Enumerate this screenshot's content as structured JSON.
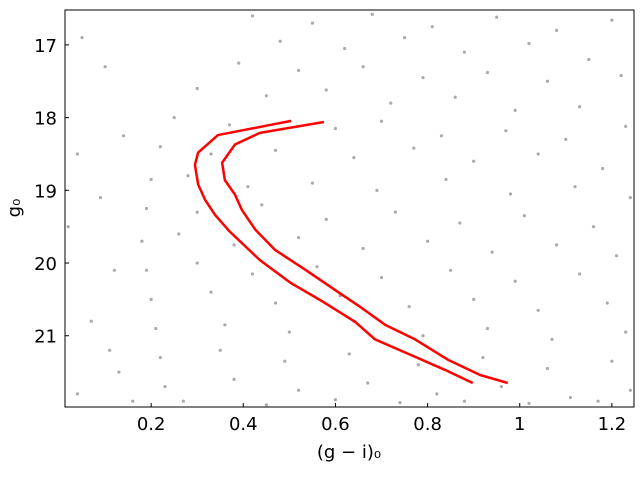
{
  "chart_data": {
    "type": "scatter",
    "xlabel": "(g − i)₀",
    "ylabel": "g₀",
    "xlim": [
      0.013,
      1.248
    ],
    "ylim": [
      16.52,
      21.98
    ],
    "y_inverted": true,
    "xticks": [
      0.2,
      0.4,
      0.6,
      0.8,
      1.0,
      1.2
    ],
    "yticks": [
      17,
      18,
      19,
      20,
      21
    ],
    "series": [
      {
        "style": "points",
        "color": "#aaaaaa",
        "x": [
          0.42,
          0.55,
          0.68,
          0.81,
          0.95,
          1.08,
          1.2,
          0.48,
          0.62,
          0.75,
          0.88,
          1.02,
          1.15,
          0.39,
          0.52,
          0.66,
          0.79,
          0.93,
          1.06,
          1.22,
          0.3,
          0.45,
          0.58,
          0.72,
          0.86,
          0.99,
          1.13,
          0.25,
          0.37,
          0.6,
          0.7,
          0.83,
          0.97,
          1.1,
          1.23,
          0.22,
          0.33,
          0.47,
          0.64,
          0.77,
          0.9,
          1.04,
          1.18,
          0.2,
          0.28,
          0.41,
          0.55,
          0.69,
          0.84,
          0.98,
          1.12,
          1.24,
          0.19,
          0.3,
          0.44,
          0.58,
          0.73,
          0.87,
          1.01,
          1.16,
          0.18,
          0.26,
          0.38,
          0.52,
          0.66,
          0.8,
          0.94,
          1.08,
          1.21,
          0.19,
          0.3,
          0.42,
          0.56,
          0.7,
          0.85,
          0.99,
          1.13,
          0.2,
          0.33,
          0.47,
          0.61,
          0.76,
          0.9,
          1.04,
          1.19,
          0.21,
          0.36,
          0.5,
          0.64,
          0.79,
          0.93,
          1.07,
          1.23,
          0.22,
          0.35,
          0.49,
          0.63,
          0.78,
          0.92,
          1.06,
          1.2,
          0.23,
          0.38,
          0.52,
          0.67,
          0.82,
          0.96,
          1.11,
          1.24,
          0.27,
          0.45,
          0.6,
          0.74,
          0.88,
          1.02,
          1.17,
          0.05,
          0.1,
          0.04,
          0.14,
          0.09,
          0.02,
          0.12,
          0.07,
          0.11,
          0.13,
          0.04,
          0.16
        ],
        "y": [
          16.6,
          16.7,
          16.58,
          16.75,
          16.62,
          16.8,
          16.66,
          16.95,
          17.05,
          16.9,
          17.1,
          16.98,
          17.2,
          17.25,
          17.35,
          17.3,
          17.45,
          17.38,
          17.5,
          17.42,
          17.6,
          17.7,
          17.62,
          17.8,
          17.72,
          17.9,
          17.85,
          18.0,
          18.1,
          18.15,
          18.05,
          18.25,
          18.18,
          18.3,
          18.12,
          18.4,
          18.5,
          18.45,
          18.55,
          18.42,
          18.6,
          18.5,
          18.7,
          18.85,
          18.8,
          18.95,
          18.9,
          19.0,
          18.85,
          19.05,
          18.95,
          19.1,
          19.25,
          19.3,
          19.2,
          19.4,
          19.3,
          19.45,
          19.35,
          19.5,
          19.7,
          19.6,
          19.75,
          19.65,
          19.8,
          19.7,
          19.85,
          19.75,
          19.9,
          20.1,
          20.0,
          20.15,
          20.05,
          20.2,
          20.1,
          20.25,
          20.15,
          20.5,
          20.4,
          20.55,
          20.45,
          20.6,
          20.5,
          20.65,
          20.55,
          20.9,
          20.85,
          20.95,
          20.8,
          21.0,
          20.9,
          21.05,
          20.95,
          21.3,
          21.2,
          21.35,
          21.25,
          21.4,
          21.3,
          21.45,
          21.35,
          21.7,
          21.6,
          21.75,
          21.65,
          21.8,
          21.7,
          21.85,
          21.75,
          21.9,
          21.95,
          21.88,
          21.92,
          21.9,
          21.93,
          21.9,
          16.9,
          17.3,
          18.5,
          18.25,
          19.1,
          19.5,
          20.1,
          20.8,
          21.2,
          21.5,
          21.8,
          21.9
        ]
      },
      {
        "style": "line",
        "color": "#ff0000",
        "x": [
          0.504,
          0.345,
          0.302,
          0.295,
          0.302,
          0.317,
          0.339,
          0.371,
          0.436,
          0.502,
          0.567,
          0.643,
          0.686,
          0.762,
          0.838,
          0.898
        ],
        "y": [
          18.045,
          18.24,
          18.48,
          18.65,
          18.92,
          19.13,
          19.34,
          19.57,
          19.96,
          20.27,
          20.51,
          20.81,
          21.05,
          21.26,
          21.47,
          21.65
        ]
      },
      {
        "style": "line",
        "color": "#ff0000",
        "x": [
          0.575,
          0.436,
          0.382,
          0.354,
          0.36,
          0.382,
          0.397,
          0.426,
          0.469,
          0.534,
          0.599,
          0.653,
          0.708,
          0.773,
          0.844,
          0.914,
          0.974
        ],
        "y": [
          18.06,
          18.21,
          18.37,
          18.62,
          18.86,
          19.06,
          19.27,
          19.54,
          19.82,
          20.09,
          20.37,
          20.6,
          20.85,
          21.05,
          21.33,
          21.54,
          21.65
        ]
      }
    ]
  }
}
